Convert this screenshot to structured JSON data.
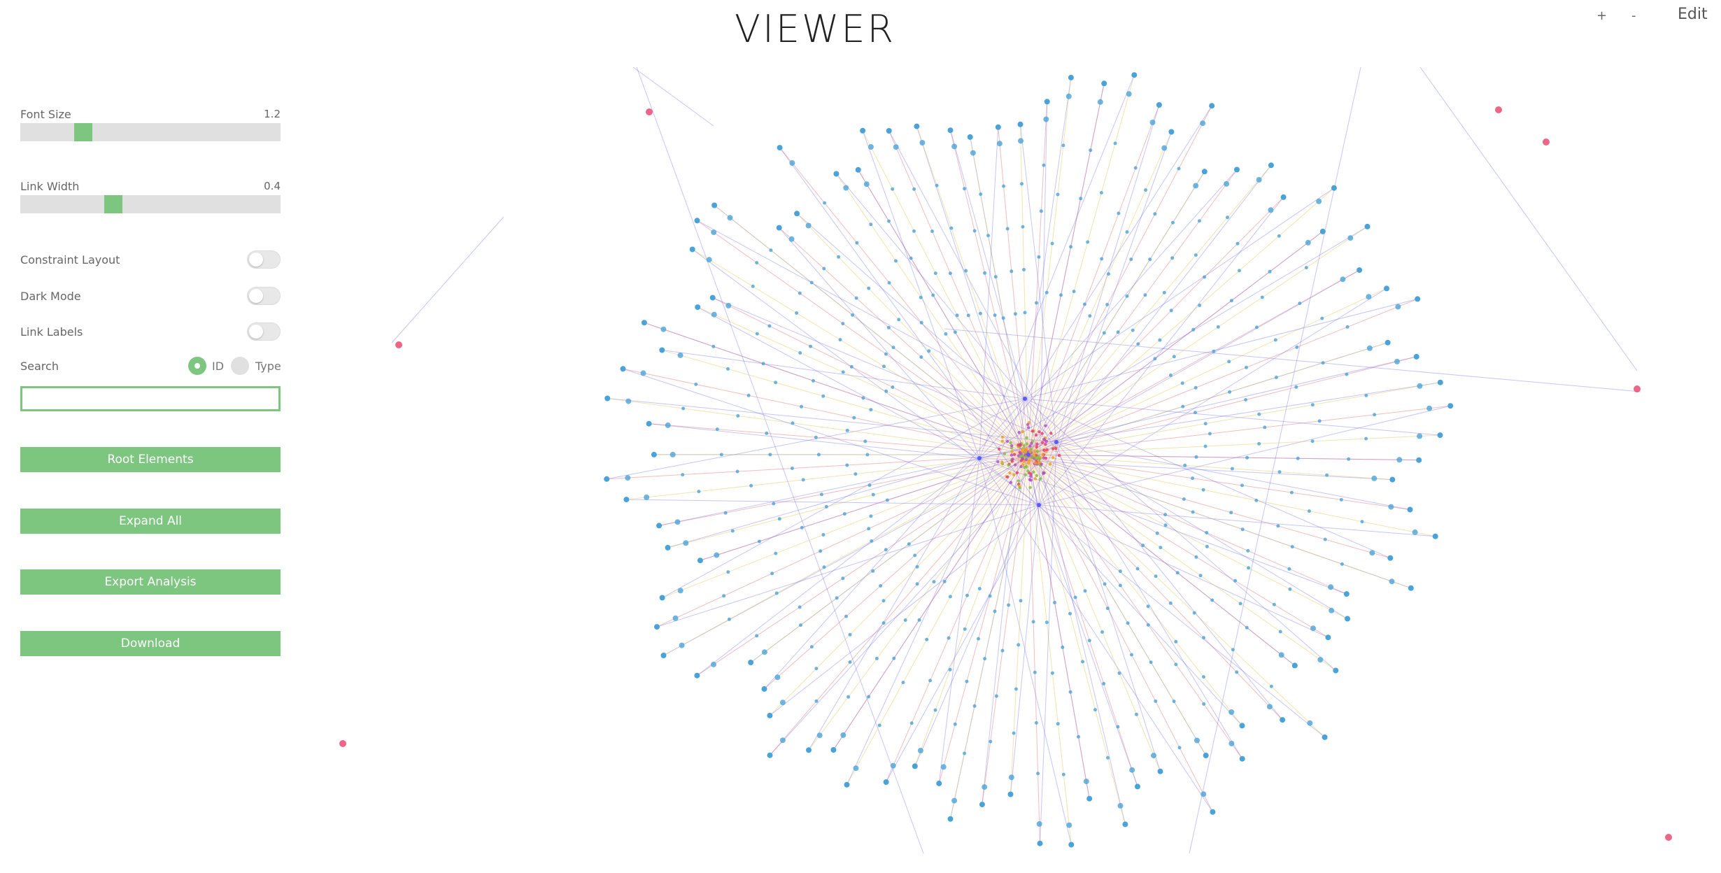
{
  "app": {
    "title": "VIEWER"
  },
  "topbar": {
    "zoom_in": "+",
    "zoom_out": "-",
    "edit": "Edit"
  },
  "sidebar": {
    "font_size": {
      "label": "Font Size",
      "value": "1.2",
      "fraction": 0.2
    },
    "link_width": {
      "label": "Link Width",
      "value": "0.4",
      "fraction": 0.33
    },
    "toggles": [
      {
        "label": "Constraint Layout",
        "on": false
      },
      {
        "label": "Dark Mode",
        "on": false
      },
      {
        "label": "Link Labels",
        "on": false
      }
    ],
    "search": {
      "label": "Search",
      "options": [
        {
          "label": "ID",
          "selected": true
        },
        {
          "label": "Type",
          "selected": false
        }
      ],
      "value": "",
      "placeholder": ""
    },
    "buttons": [
      "Root Elements",
      "Expand All",
      "Export Analysis",
      "Download"
    ]
  },
  "colors": {
    "accent": "#7dc67f",
    "node_cluster": "#4aa3d8",
    "node_hub": "#e8406a",
    "link_blue": "#5a5aff",
    "link_red": "#e86a6a",
    "link_yellow": "#e3c34a"
  }
}
